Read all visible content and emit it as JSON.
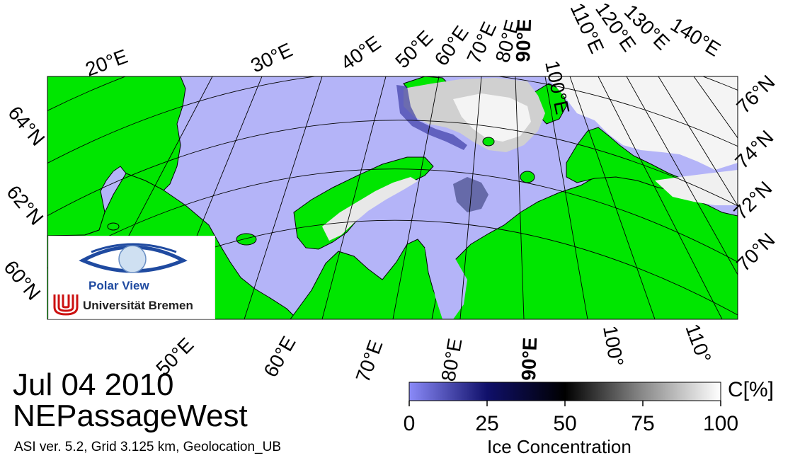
{
  "title": {
    "date": "Jul 04 2010",
    "region": "NEPassageWest",
    "meta": "ASI ver. 5.2,  Grid 3.125 km, Geolocation_UB"
  },
  "logo": {
    "brand": "Polar View",
    "institution": "Universität Bremen"
  },
  "map": {
    "projection": "polar-stereographic",
    "colors": {
      "open_water": "#b4b4f8",
      "land": "#00e600",
      "coastline": "#000000",
      "ice_full": "#ffffff",
      "ice_medium": "#c8c8c8",
      "ice_low": "#2a2a9a"
    },
    "longitude_labels_top": [
      "20°E",
      "30°E",
      "40°E",
      "50°E",
      "60°E",
      "70°E",
      "80°E",
      "90°E",
      "100°E",
      "110°E",
      "120°E",
      "130°E",
      "140°E"
    ],
    "longitude_labels_bottom": [
      "50°E",
      "60°E",
      "70°E",
      "80°E",
      "90°E",
      "100°",
      "110°"
    ],
    "latitude_labels_left": [
      "64°N",
      "62°N",
      "60°N"
    ],
    "latitude_labels_right": [
      "76°N",
      "74°N",
      "72°N",
      "70°N"
    ]
  },
  "colorbar": {
    "title": "C[%]",
    "xlabel": "Ice Concentration",
    "ticks": [
      "0",
      "25",
      "50",
      "75",
      "100"
    ],
    "range": [
      0,
      100
    ],
    "stops": [
      {
        "value": 0,
        "color": "#8a8af8"
      },
      {
        "value": 25,
        "color": "#10106a"
      },
      {
        "value": 50,
        "color": "#000000"
      },
      {
        "value": 75,
        "color": "#8a8a8a"
      },
      {
        "value": 100,
        "color": "#ffffff"
      }
    ]
  }
}
